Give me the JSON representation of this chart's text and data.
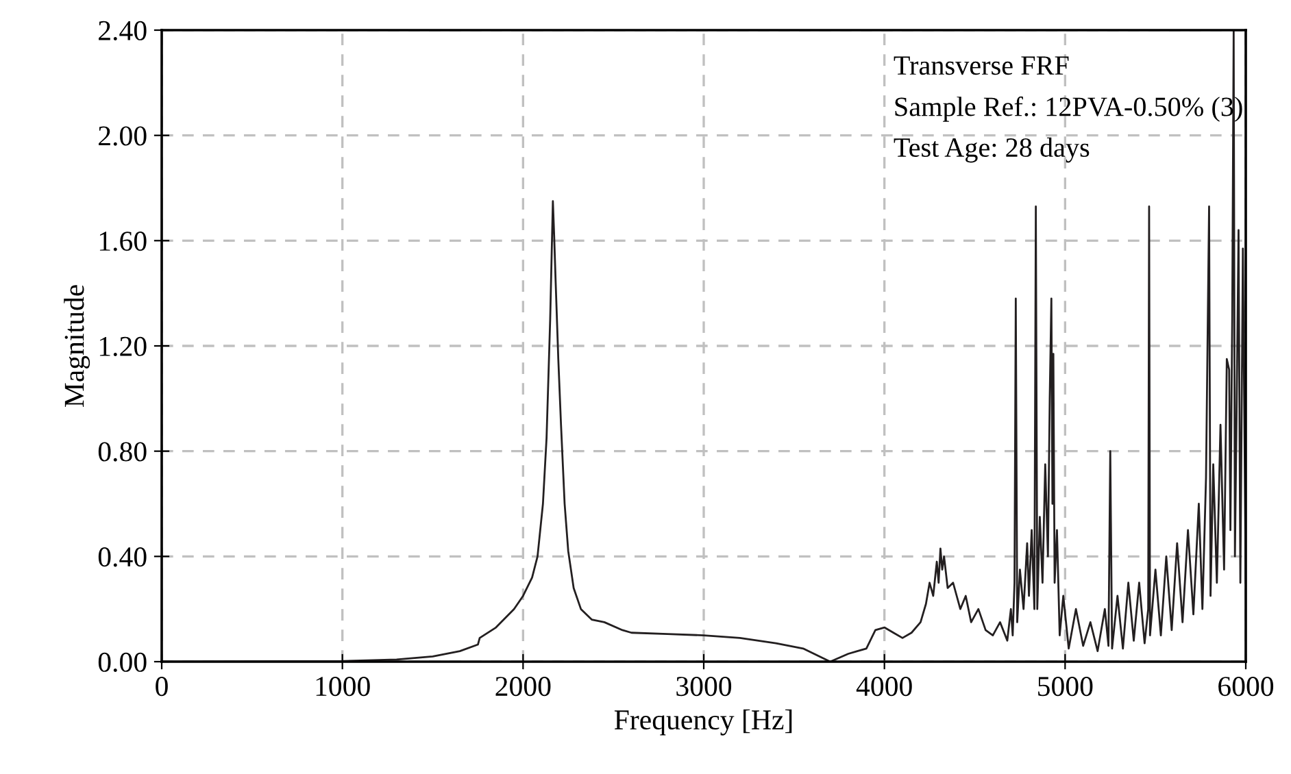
{
  "chart_data": {
    "type": "line",
    "xlabel": "Frequency [Hz]",
    "ylabel": "Magnitude",
    "xlim": [
      0,
      6000
    ],
    "xticks": [
      0,
      1000,
      2000,
      3000,
      4000,
      5000,
      6000
    ],
    "ylim": [
      0,
      2.4
    ],
    "yticks": [
      {
        "value": 0,
        "label": "0.00"
      },
      {
        "value": 0.4,
        "label": "0.40"
      },
      {
        "value": 0.8,
        "label": "0.80"
      },
      {
        "value": 1.2,
        "label": "1.20"
      },
      {
        "value": 1.6,
        "label": "1.60"
      },
      {
        "value": 2.0,
        "label": "2.00"
      },
      {
        "value": 2.4,
        "label": "2.40"
      }
    ],
    "grid": true,
    "line_style": "solid",
    "marker": "none",
    "annotations": [
      "Transverse FRF",
      "Sample Ref.: 12PVA-0.50% (3)",
      "Test Age: 28 days"
    ],
    "series": [
      {
        "color": "#231f20",
        "x": [
          0,
          1000,
          1300,
          1500,
          1650,
          1750,
          1760,
          1850,
          1950,
          2000,
          2050,
          2080,
          2110,
          2130,
          2150,
          2160,
          2165,
          2172,
          2180,
          2195,
          2210,
          2230,
          2250,
          2280,
          2320,
          2380,
          2450,
          2550,
          2600,
          2800,
          3000,
          3200,
          3400,
          3550,
          3700,
          3800,
          3850,
          3900,
          3950,
          4000,
          4050,
          4100,
          4150,
          4200,
          4230,
          4250,
          4270,
          4290,
          4300,
          4310,
          4320,
          4330,
          4350,
          4380,
          4420,
          4450,
          4480,
          4520,
          4560,
          4600,
          4640,
          4680,
          4700,
          4710,
          4720,
          4727,
          4735,
          4750,
          4770,
          4790,
          4800,
          4815,
          4830,
          4838,
          4846,
          4860,
          4875,
          4890,
          4905,
          4915,
          4924,
          4930,
          4935,
          4942,
          4955,
          4970,
          4990,
          5020,
          5060,
          5100,
          5140,
          5180,
          5220,
          5240,
          5250,
          5260,
          5290,
          5320,
          5350,
          5380,
          5410,
          5440,
          5460,
          5465,
          5470,
          5500,
          5530,
          5560,
          5590,
          5620,
          5650,
          5680,
          5710,
          5740,
          5760,
          5780,
          5797,
          5805,
          5820,
          5840,
          5860,
          5880,
          5895,
          5908,
          5915,
          5925,
          5933,
          5940,
          5950,
          5960,
          5970,
          5984,
          6000
        ],
        "values": [
          0,
          0.002,
          0.008,
          0.02,
          0.04,
          0.065,
          0.09,
          0.13,
          0.2,
          0.25,
          0.32,
          0.4,
          0.6,
          0.85,
          1.3,
          1.6,
          1.75,
          1.62,
          1.45,
          1.15,
          0.9,
          0.6,
          0.42,
          0.28,
          0.2,
          0.16,
          0.15,
          0.12,
          0.11,
          0.105,
          0.1,
          0.09,
          0.07,
          0.05,
          0.0,
          0.03,
          0.04,
          0.05,
          0.12,
          0.13,
          0.11,
          0.09,
          0.11,
          0.15,
          0.22,
          0.3,
          0.25,
          0.38,
          0.3,
          0.43,
          0.35,
          0.4,
          0.28,
          0.3,
          0.2,
          0.25,
          0.15,
          0.2,
          0.12,
          0.1,
          0.15,
          0.08,
          0.2,
          0.1,
          0.3,
          1.38,
          0.15,
          0.35,
          0.2,
          0.45,
          0.25,
          0.5,
          0.2,
          1.73,
          0.2,
          0.55,
          0.3,
          0.75,
          0.4,
          1.0,
          1.38,
          0.6,
          1.17,
          0.3,
          0.5,
          0.1,
          0.25,
          0.05,
          0.2,
          0.06,
          0.15,
          0.04,
          0.2,
          0.06,
          0.8,
          0.05,
          0.25,
          0.05,
          0.3,
          0.08,
          0.3,
          0.07,
          0.2,
          1.73,
          0.1,
          0.35,
          0.1,
          0.4,
          0.12,
          0.45,
          0.15,
          0.5,
          0.18,
          0.6,
          0.2,
          0.7,
          1.73,
          0.25,
          0.75,
          0.3,
          0.9,
          0.35,
          1.15,
          1.11,
          0.5,
          1.3,
          2.4,
          0.4,
          1.0,
          1.64,
          0.3,
          1.57,
          0.3
        ]
      }
    ]
  }
}
